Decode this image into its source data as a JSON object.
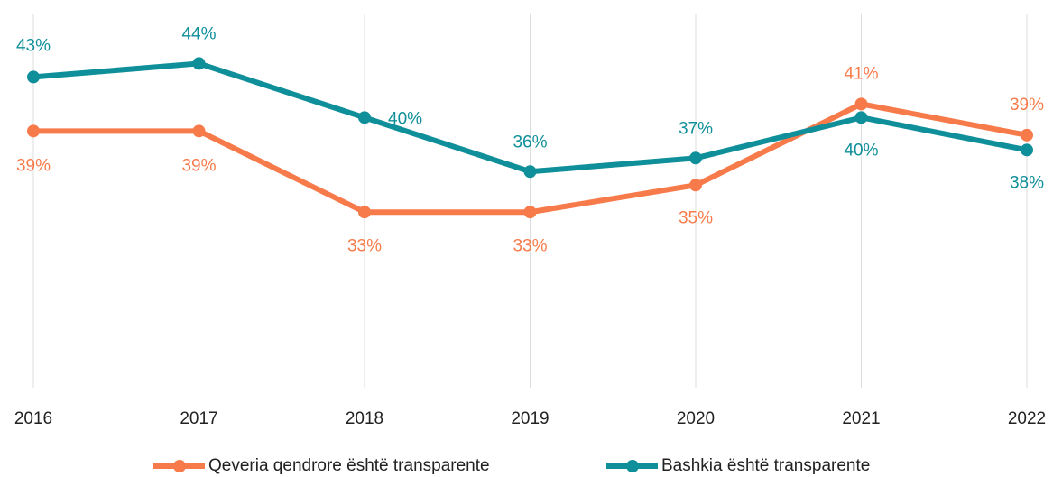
{
  "chart_data": {
    "type": "line",
    "categories": [
      "2016",
      "2017",
      "2018",
      "2019",
      "2020",
      "2021",
      "2022"
    ],
    "series": [
      {
        "name": "Qeveria qendrore është transparente",
        "color": "#f77b4a",
        "values": [
          39,
          39,
          33,
          33,
          35,
          41,
          38.7
        ],
        "value_labels": [
          "39%",
          "39%",
          "33%",
          "33%",
          "35%",
          "41%",
          "39%"
        ]
      },
      {
        "name": "Bashkia është transparente",
        "color": "#0f8f99",
        "values": [
          43,
          44,
          40,
          36,
          37,
          40,
          37.6
        ],
        "value_labels": [
          "43%",
          "44%",
          "40%",
          "36%",
          "37%",
          "40%",
          "38%"
        ]
      }
    ],
    "ylim": [
      20,
      47.7
    ],
    "grid": true
  }
}
